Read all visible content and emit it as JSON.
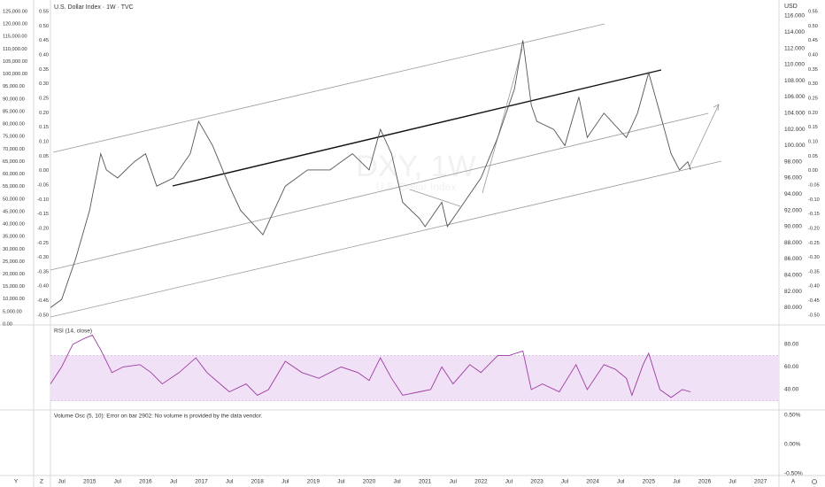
{
  "header": {
    "title": "U.S. Dollar Index · 1W · TVC",
    "watermark": "DXY, 1W",
    "watermark_sub": "U.S. Dollar Index"
  },
  "chart_data": [
    {
      "type": "line",
      "name": "DXY",
      "color": "#555555",
      "x": [
        2014.3,
        2014.5,
        2014.75,
        2015.0,
        2015.2,
        2015.3,
        2015.5,
        2015.8,
        2016.0,
        2016.2,
        2016.5,
        2016.8,
        2016.95,
        2017.2,
        2017.5,
        2017.7,
        2018.1,
        2018.5,
        2018.9,
        2019.3,
        2019.7,
        2020.0,
        2020.2,
        2020.4,
        2020.6,
        2020.9,
        2021.0,
        2021.3,
        2021.4,
        2021.7,
        2022.0,
        2022.3,
        2022.6,
        2022.75,
        2022.9,
        2023.0,
        2023.3,
        2023.5,
        2023.75,
        2023.9,
        2024.2,
        2024.6,
        2024.8,
        2025.0,
        2025.2,
        2025.4,
        2025.55,
        2025.7,
        2025.75
      ],
      "values": [
        80,
        81,
        86,
        92,
        99,
        97,
        96,
        98,
        99,
        95,
        96,
        99,
        103,
        100,
        95,
        92,
        89,
        95,
        97,
        97,
        99,
        97,
        102,
        99,
        93,
        91,
        90,
        93,
        90,
        93,
        96,
        101,
        107,
        113,
        105,
        103,
        102,
        100,
        106,
        101,
        104,
        101,
        104,
        109,
        104,
        99,
        97,
        98,
        97
      ],
      "xlim": [
        2014.3,
        2027.33
      ],
      "ylim": [
        77.86,
        117.97
      ],
      "xticks": [
        {
          "value": 2014.5,
          "label": "Jul"
        },
        2015,
        {
          "value": 2015.5,
          "label": "Jul"
        },
        2016,
        {
          "value": 2016.5,
          "label": "Jul"
        },
        2017,
        {
          "value": 2017.5,
          "label": "Jul"
        },
        2018,
        {
          "value": 2018.5,
          "label": "Jul"
        },
        2019,
        {
          "value": 2019.5,
          "label": "Jul"
        },
        2020,
        {
          "value": 2020.5,
          "label": "Jul"
        },
        2021,
        {
          "value": 2021.5,
          "label": "Jul"
        },
        2022,
        {
          "value": 2022.5,
          "label": "Jul"
        },
        2023,
        {
          "value": 2023.5,
          "label": "Jul"
        },
        2024,
        {
          "value": 2024.5,
          "label": "Jul"
        },
        2025,
        {
          "value": 2025.5,
          "label": "Jul"
        },
        2026,
        {
          "value": 2026.5,
          "label": "Jul"
        },
        2027
      ],
      "y_axis_title": "USD",
      "yticks": [
        {
          "value": 80,
          "label": "80.000"
        },
        {
          "value": 82,
          "label": "82.000"
        },
        {
          "value": 84,
          "label": "84.000"
        },
        {
          "value": 86,
          "label": "86.000"
        },
        {
          "value": 88,
          "label": "88.000"
        },
        {
          "value": 90,
          "label": "90.000"
        },
        {
          "value": 92,
          "label": "92.000"
        },
        {
          "value": 94,
          "label": "94.000"
        },
        {
          "value": 96,
          "label": "96.000"
        },
        {
          "value": 98,
          "label": "98.000"
        },
        {
          "value": 100,
          "label": "100.000"
        },
        {
          "value": 102,
          "label": "102.000"
        },
        {
          "value": 104,
          "label": "104.000"
        },
        {
          "value": 106,
          "label": "106.000"
        },
        {
          "value": 108,
          "label": "108.000"
        },
        {
          "value": 110,
          "label": "110.000"
        },
        {
          "value": 112,
          "label": "112.000"
        },
        {
          "value": 114,
          "label": "114.000"
        },
        {
          "value": 116,
          "label": "116.000"
        }
      ]
    },
    {
      "type": "line",
      "name": "RSI (14, close)",
      "color": "#9c3aa0",
      "x": [
        2014.3,
        2014.5,
        2014.7,
        2014.9,
        2015.05,
        2015.2,
        2015.4,
        2015.6,
        2015.9,
        2016.1,
        2016.3,
        2016.6,
        2016.9,
        2017.1,
        2017.5,
        2017.8,
        2018.0,
        2018.2,
        2018.5,
        2018.8,
        2019.1,
        2019.5,
        2019.8,
        2020.0,
        2020.2,
        2020.4,
        2020.6,
        2020.9,
        2021.1,
        2021.3,
        2021.5,
        2021.8,
        2022.0,
        2022.3,
        2022.5,
        2022.75,
        2022.9,
        2023.1,
        2023.4,
        2023.7,
        2023.9,
        2024.2,
        2024.4,
        2024.6,
        2024.7,
        2024.9,
        2025.0,
        2025.2,
        2025.4,
        2025.6,
        2025.75
      ],
      "values": [
        45,
        60,
        80,
        85,
        88,
        75,
        55,
        60,
        62,
        55,
        45,
        55,
        68,
        55,
        38,
        45,
        35,
        40,
        65,
        55,
        50,
        60,
        55,
        48,
        68,
        50,
        35,
        38,
        40,
        60,
        45,
        62,
        55,
        70,
        70,
        74,
        40,
        45,
        38,
        62,
        40,
        62,
        58,
        50,
        35,
        62,
        72,
        40,
        33,
        40,
        38
      ],
      "xlim": [
        2014.3,
        2027.33
      ],
      "ylim": [
        22,
        97
      ],
      "band": [
        30,
        70
      ],
      "band_color": "#f1e1f7",
      "yticks": [
        {
          "value": 40,
          "label": "40.00"
        },
        {
          "value": 60,
          "label": "60.00"
        },
        {
          "value": 80,
          "label": "80.00"
        }
      ]
    }
  ],
  "volume_pane": {
    "message": "Volume Osc (5, 10): Error on bar 2902: No volume is provided by the data vendor.",
    "ylim": [
      -0.53,
      0.59
    ],
    "ticks": [
      {
        "value": 0.5,
        "label": "0.50%"
      },
      {
        "value": 0,
        "label": "0.00%"
      },
      {
        "value": -0.5,
        "label": "-0.50%"
      }
    ]
  },
  "left_price_axis": {
    "ylim": [
      -354,
      129603
    ],
    "ticks": [
      {
        "value": 0,
        "label": "0.00"
      },
      {
        "value": 5000,
        "label": "5,000.00"
      },
      {
        "value": 10000,
        "label": "10,000.00"
      },
      {
        "value": 15000,
        "label": "15,000.00"
      },
      {
        "value": 20000,
        "label": "20,000.00"
      },
      {
        "value": 25000,
        "label": "25,000.00"
      },
      {
        "value": 30000,
        "label": "30,000.00"
      },
      {
        "value": 35000,
        "label": "35,000.00"
      },
      {
        "value": 40000,
        "label": "40,000.00"
      },
      {
        "value": 45000,
        "label": "45,000.00"
      },
      {
        "value": 50000,
        "label": "50,000.00"
      },
      {
        "value": 55000,
        "label": "55,000.00"
      },
      {
        "value": 60000,
        "label": "60,000.00"
      },
      {
        "value": 65000,
        "label": "65,000.00"
      },
      {
        "value": 70000,
        "label": "70,000.00"
      },
      {
        "value": 75000,
        "label": "75,000.00"
      },
      {
        "value": 80000,
        "label": "80,000.00"
      },
      {
        "value": 85000,
        "label": "85,000.00"
      },
      {
        "value": 90000,
        "label": "90,000.00"
      },
      {
        "value": 95000,
        "label": "95,000.00"
      },
      {
        "value": 100000,
        "label": "100,000.00"
      },
      {
        "value": 105000,
        "label": "105,000.00"
      },
      {
        "value": 110000,
        "label": "110,000.00"
      },
      {
        "value": 115000,
        "label": "115,000.00"
      },
      {
        "value": 120000,
        "label": "120,000.00"
      },
      {
        "value": 125000,
        "label": "125,000.00"
      }
    ]
  },
  "percent_axis": {
    "ylim": [
      -0.534,
      0.59
    ],
    "ticks": [
      {
        "value": 0.55,
        "label": "0.55"
      },
      {
        "value": 0.5,
        "label": "0.50"
      },
      {
        "value": 0.45,
        "label": "0.45"
      },
      {
        "value": 0.4,
        "label": "0.40"
      },
      {
        "value": 0.35,
        "label": "0.35"
      },
      {
        "value": 0.3,
        "label": "0.30"
      },
      {
        "value": 0.25,
        "label": "0.25"
      },
      {
        "value": 0.2,
        "label": "0.20"
      },
      {
        "value": 0.15,
        "label": "0.15"
      },
      {
        "value": 0.1,
        "label": "0.10"
      },
      {
        "value": 0.05,
        "label": "0.05"
      },
      {
        "value": 0,
        "label": "0.00"
      },
      {
        "value": -0.05,
        "label": "-0.05"
      },
      {
        "value": -0.1,
        "label": "-0.10"
      },
      {
        "value": -0.15,
        "label": "-0.15"
      },
      {
        "value": -0.2,
        "label": "-0.20"
      },
      {
        "value": -0.25,
        "label": "-0.25"
      },
      {
        "value": -0.3,
        "label": "-0.30"
      },
      {
        "value": -0.35,
        "label": "-0.35"
      },
      {
        "value": -0.4,
        "label": "-0.40"
      },
      {
        "value": -0.45,
        "label": "-0.45"
      },
      {
        "value": -0.5,
        "label": "-0.50"
      }
    ]
  },
  "toolbar": {
    "left": [
      "Y",
      "Z"
    ],
    "right": [
      "A"
    ]
  }
}
